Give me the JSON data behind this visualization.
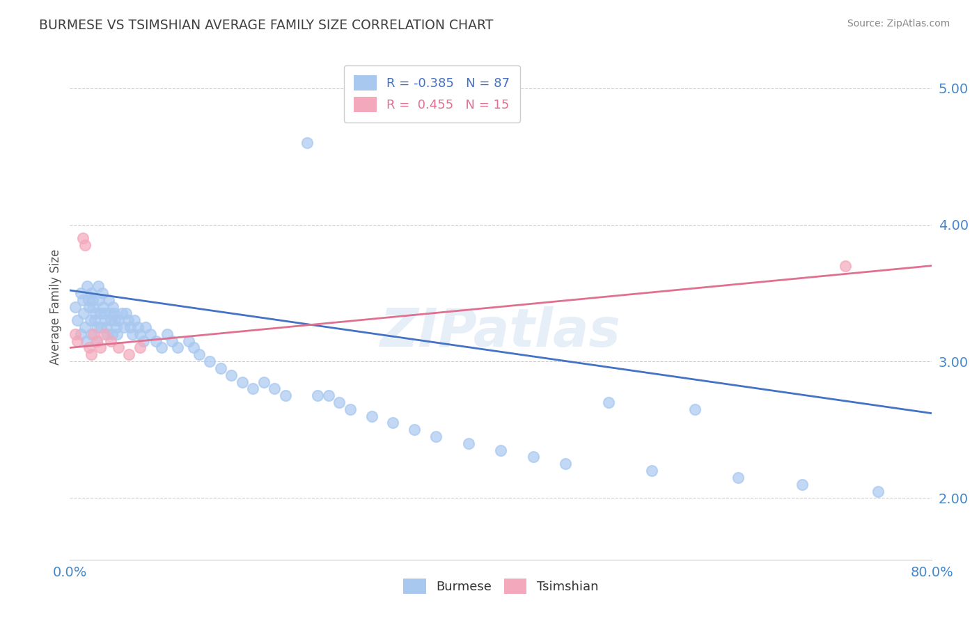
{
  "title": "BURMESE VS TSIMSHIAN AVERAGE FAMILY SIZE CORRELATION CHART",
  "source": "Source: ZipAtlas.com",
  "ylabel": "Average Family Size",
  "xlim": [
    0.0,
    0.8
  ],
  "ylim": [
    1.55,
    5.25
  ],
  "yticks": [
    2.0,
    3.0,
    4.0,
    5.0
  ],
  "legend_labels": [
    "Burmese",
    "Tsimshian"
  ],
  "R_burmese": -0.385,
  "N_burmese": 87,
  "R_tsimshian": 0.455,
  "N_tsimshian": 15,
  "color_burmese": "#a8c8f0",
  "color_tsimshian": "#f4a8bc",
  "line_color_burmese": "#4472c4",
  "line_color_tsimshian": "#e07090",
  "background_color": "#ffffff",
  "title_color": "#404040",
  "source_color": "#888888",
  "grid_color": "#cccccc",
  "axis_label_color": "#4488cc",
  "burmese_x": [
    0.005,
    0.007,
    0.01,
    0.01,
    0.012,
    0.013,
    0.014,
    0.015,
    0.016,
    0.017,
    0.018,
    0.019,
    0.02,
    0.02,
    0.021,
    0.022,
    0.023,
    0.024,
    0.025,
    0.025,
    0.026,
    0.027,
    0.028,
    0.029,
    0.03,
    0.031,
    0.032,
    0.033,
    0.034,
    0.035,
    0.036,
    0.037,
    0.038,
    0.039,
    0.04,
    0.041,
    0.042,
    0.043,
    0.044,
    0.045,
    0.048,
    0.05,
    0.052,
    0.054,
    0.056,
    0.058,
    0.06,
    0.063,
    0.065,
    0.068,
    0.07,
    0.075,
    0.08,
    0.085,
    0.09,
    0.095,
    0.1,
    0.11,
    0.115,
    0.12,
    0.13,
    0.14,
    0.15,
    0.16,
    0.17,
    0.18,
    0.19,
    0.2,
    0.22,
    0.23,
    0.24,
    0.25,
    0.26,
    0.28,
    0.3,
    0.32,
    0.34,
    0.37,
    0.4,
    0.43,
    0.46,
    0.5,
    0.54,
    0.58,
    0.62,
    0.68,
    0.75
  ],
  "burmese_y": [
    3.4,
    3.3,
    3.5,
    3.2,
    3.45,
    3.35,
    3.25,
    3.15,
    3.55,
    3.45,
    3.4,
    3.3,
    3.5,
    3.2,
    3.45,
    3.4,
    3.3,
    3.35,
    3.25,
    3.15,
    3.55,
    3.45,
    3.35,
    3.25,
    3.5,
    3.4,
    3.35,
    3.3,
    3.25,
    3.2,
    3.45,
    3.35,
    3.3,
    3.2,
    3.4,
    3.35,
    3.3,
    3.25,
    3.2,
    3.3,
    3.35,
    3.25,
    3.35,
    3.3,
    3.25,
    3.2,
    3.3,
    3.25,
    3.2,
    3.15,
    3.25,
    3.2,
    3.15,
    3.1,
    3.2,
    3.15,
    3.1,
    3.15,
    3.1,
    3.05,
    3.0,
    2.95,
    2.9,
    2.85,
    2.8,
    2.85,
    2.8,
    2.75,
    4.6,
    2.75,
    2.75,
    2.7,
    2.65,
    2.6,
    2.55,
    2.5,
    2.45,
    2.4,
    2.35,
    2.3,
    2.25,
    2.7,
    2.2,
    2.65,
    2.15,
    2.1,
    2.05
  ],
  "tsimshian_x": [
    0.005,
    0.007,
    0.012,
    0.014,
    0.018,
    0.02,
    0.022,
    0.025,
    0.028,
    0.032,
    0.038,
    0.045,
    0.055,
    0.065,
    0.72
  ],
  "tsimshian_y": [
    3.2,
    3.15,
    3.9,
    3.85,
    3.1,
    3.05,
    3.2,
    3.15,
    3.1,
    3.2,
    3.15,
    3.1,
    3.05,
    3.1,
    3.7
  ]
}
